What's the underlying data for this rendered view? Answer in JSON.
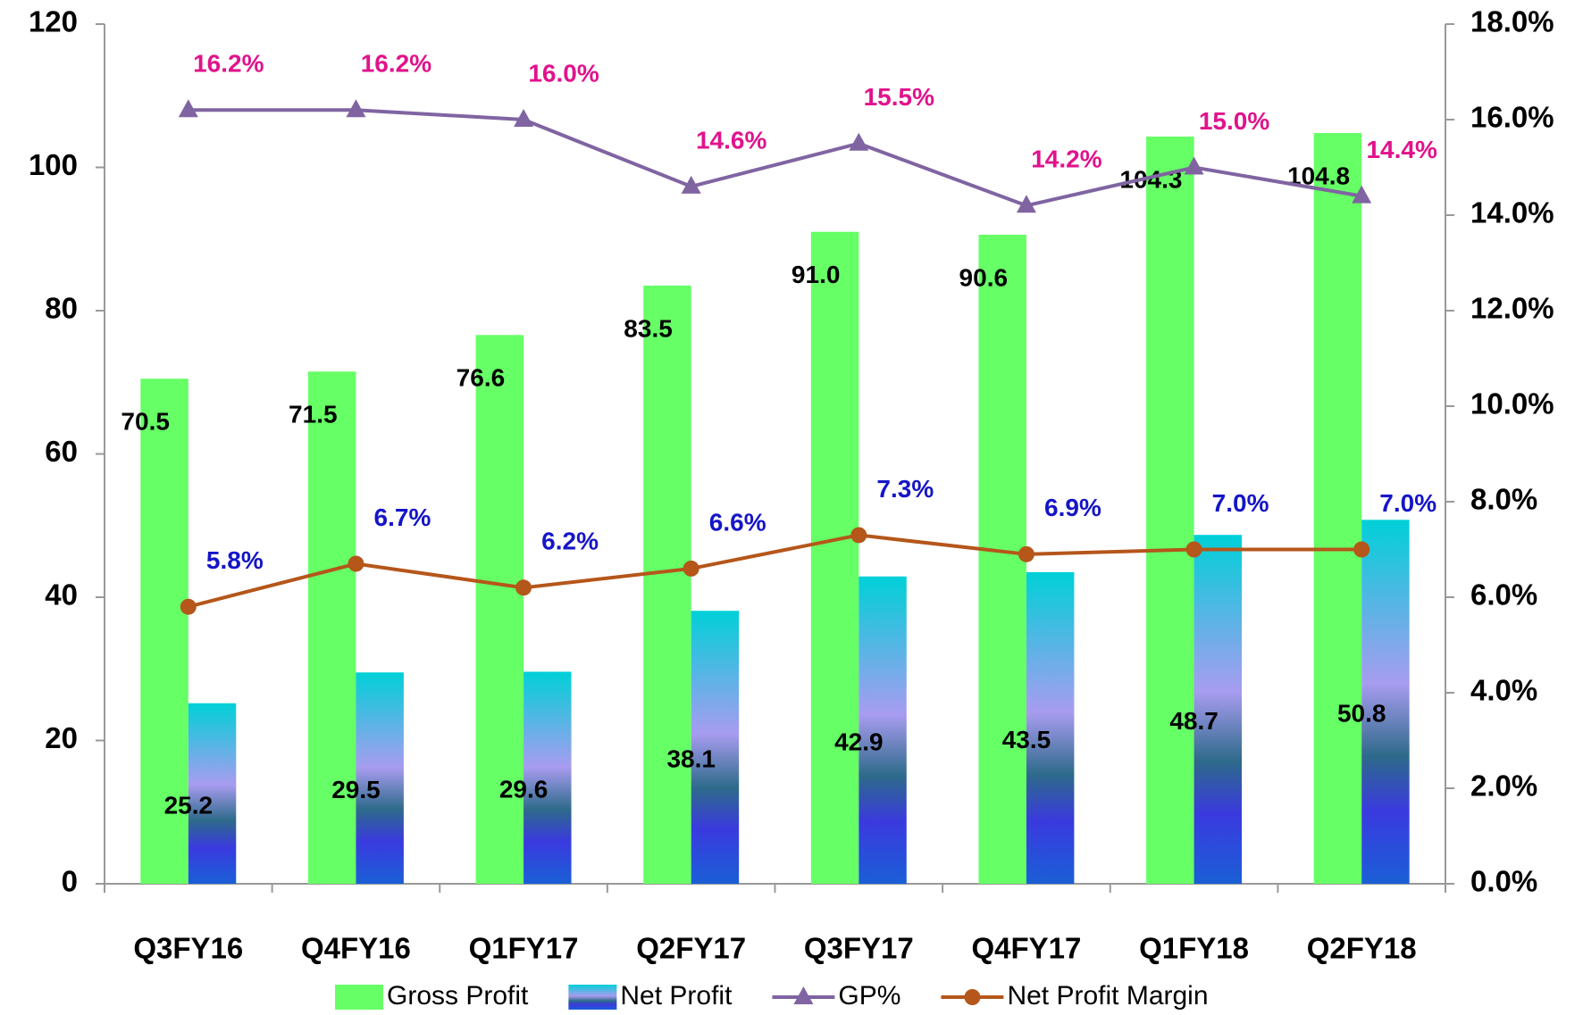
{
  "chart_data": {
    "type": "bar-line",
    "categories": [
      "Q3FY16",
      "Q4FY16",
      "Q1FY17",
      "Q2FY17",
      "Q3FY17",
      "Q4FY17",
      "Q1FY18",
      "Q2FY18"
    ],
    "series": [
      {
        "name": "Gross Profit",
        "type": "bar",
        "color": "#66ff66",
        "values": [
          70.5,
          71.5,
          76.6,
          83.5,
          91.0,
          90.6,
          104.3,
          104.8
        ],
        "value_labels": [
          "70.5",
          "71.5",
          "76.6",
          "83.5",
          "91.0",
          "90.6",
          "104.3",
          "104.8"
        ]
      },
      {
        "name": "Net Profit",
        "type": "bar",
        "color": "#1a5fd6",
        "values": [
          25.2,
          29.5,
          29.6,
          38.1,
          42.9,
          43.5,
          48.7,
          50.8
        ],
        "value_labels": [
          "25.2",
          "29.5",
          "29.6",
          "38.1",
          "42.9",
          "43.5",
          "48.7",
          "50.8"
        ]
      },
      {
        "name": "GP%",
        "type": "line",
        "marker": "triangle",
        "axis": "y2",
        "color": "#8064a2",
        "label_color": "#e0138c",
        "values": [
          16.2,
          16.2,
          16.0,
          14.6,
          15.5,
          14.2,
          15.0,
          14.4
        ],
        "value_labels": [
          "16.2%",
          "16.2%",
          "16.0%",
          "14.6%",
          "15.5%",
          "14.2%",
          "15.0%",
          "14.4%"
        ]
      },
      {
        "name": "Net Profit Margin",
        "type": "line",
        "marker": "circle",
        "axis": "y2",
        "color": "#b5561a",
        "label_color": "#1515c8",
        "values": [
          5.8,
          6.7,
          6.2,
          6.6,
          7.3,
          6.9,
          7.0,
          7.0
        ],
        "value_labels": [
          "5.8%",
          "6.7%",
          "6.2%",
          "6.6%",
          "7.3%",
          "6.9%",
          "7.0%",
          "7.0%"
        ]
      }
    ],
    "ylim": [
      0,
      120
    ],
    "yticks": [
      0,
      20,
      40,
      60,
      80,
      100,
      120
    ],
    "y2lim": [
      0,
      18
    ],
    "y2ticks": [
      {
        "value": 0,
        "label": "0.0%"
      },
      {
        "value": 2,
        "label": "2.0%"
      },
      {
        "value": 4,
        "label": "4.0%"
      },
      {
        "value": 6,
        "label": "6.0%"
      },
      {
        "value": 8,
        "label": "8.0%"
      },
      {
        "value": 10,
        "label": "10.0%"
      },
      {
        "value": 12,
        "label": "12.0%"
      },
      {
        "value": 14,
        "label": "14.0%"
      },
      {
        "value": 16,
        "label": "16.0%"
      },
      {
        "value": 18,
        "label": "18.0%"
      }
    ],
    "grid": false,
    "legend": "bottom"
  }
}
